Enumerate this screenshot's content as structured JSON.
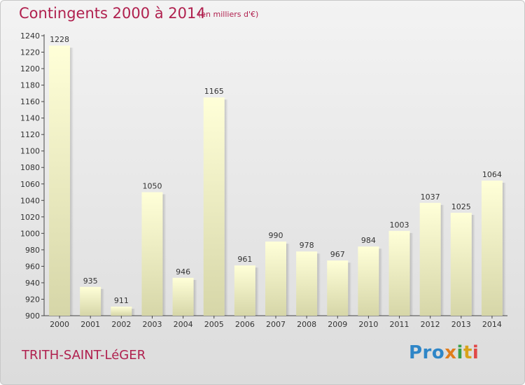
{
  "title": "Contingents 2000 à 2014",
  "subtitle": "(en milliers d'€)",
  "city": "TRITH-SAINT-LéGER",
  "logo": {
    "text": "Proxiti",
    "letters": [
      "Pro",
      "x",
      "i",
      "t",
      "i"
    ]
  },
  "colors": {
    "title": "#b0204e",
    "bar_top": "#ffffd8",
    "bar_bottom": "#d6d6a8"
  },
  "chart_data": {
    "type": "bar",
    "title": "Contingents 2000 à 2014",
    "subtitle": "(en milliers d'€)",
    "categories": [
      "2000",
      "2001",
      "2002",
      "2003",
      "2004",
      "2005",
      "2006",
      "2007",
      "2008",
      "2009",
      "2010",
      "2011",
      "2012",
      "2013",
      "2014"
    ],
    "values": [
      1228,
      935,
      911,
      1050,
      946,
      1165,
      961,
      990,
      978,
      967,
      984,
      1003,
      1037,
      1025,
      1064
    ],
    "ylim": [
      900,
      1240
    ],
    "yticks": [
      900,
      920,
      940,
      960,
      980,
      1000,
      1020,
      1040,
      1060,
      1080,
      1100,
      1120,
      1140,
      1160,
      1180,
      1200,
      1220,
      1240
    ],
    "xlabel": "",
    "ylabel": "",
    "grid": false,
    "legend": "none"
  }
}
